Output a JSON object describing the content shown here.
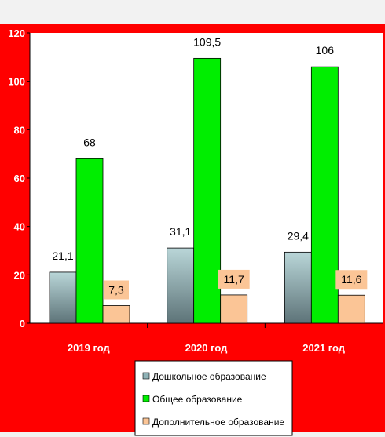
{
  "chart_data": {
    "type": "bar",
    "title": "",
    "xlabel": "",
    "ylabel": "",
    "categories": [
      "2019 год",
      "2020 год",
      "2021 год"
    ],
    "series": [
      {
        "name": "Дошкольное образование",
        "values": [
          21.1,
          31.1,
          29.4
        ],
        "labels": [
          "21,1",
          "31,1",
          "29,4"
        ]
      },
      {
        "name": "Общее образование",
        "values": [
          68,
          109.5,
          106
        ],
        "labels": [
          "68",
          "109,5",
          "106"
        ]
      },
      {
        "name": "Дополнительное образование",
        "values": [
          7.3,
          11.7,
          11.6
        ],
        "labels": [
          "7,3",
          "11,7",
          "11,6"
        ]
      }
    ],
    "ylim": [
      0,
      120
    ],
    "yticks": [
      0,
      20,
      40,
      60,
      80,
      100,
      120
    ],
    "grid": false,
    "legend_position": "bottom-center"
  },
  "colors": {
    "background": "#ff0000",
    "plot_area": "#ffffff",
    "series": [
      "#8fb2b6",
      "#00ee00",
      "#fbc596"
    ],
    "value_label_box": "#fbc596"
  }
}
